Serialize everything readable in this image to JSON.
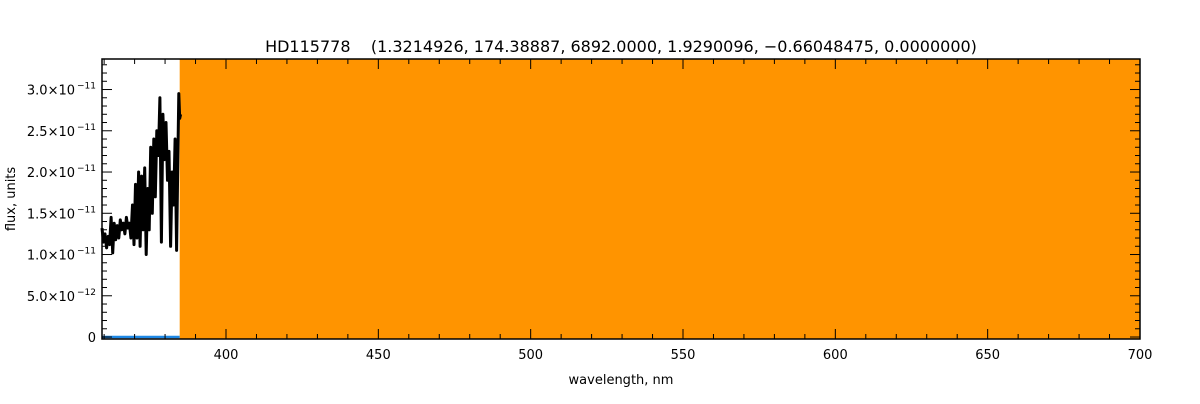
{
  "chart_data": {
    "type": "line",
    "title": "HD115778    (1.3214926, 174.38887, 6892.0000, 1.9290096, −0.66048475, 0.0000000)",
    "xlabel": "wavelength, nm",
    "ylabel": "flux, units",
    "xlim": [
      359.3,
      700
    ],
    "ylim": [
      -2.4e-13,
      3.37e-11
    ],
    "grid": false,
    "x_ticks": [
      400,
      450,
      500,
      550,
      600,
      650,
      700
    ],
    "x_tick_labels": [
      "400",
      "450",
      "500",
      "550",
      "600",
      "650",
      "700"
    ],
    "y_ticks": [
      0,
      5e-12,
      1e-11,
      1.5e-11,
      2e-11,
      2.5e-11,
      3e-11
    ],
    "y_tick_labels": [
      {
        "mant": "0",
        "exp": ""
      },
      {
        "mant": "5.0×10",
        "exp": "−12"
      },
      {
        "mant": "1.0×10",
        "exp": "−11"
      },
      {
        "mant": "1.5×10",
        "exp": "−11"
      },
      {
        "mant": "2.0×10",
        "exp": "−11"
      },
      {
        "mant": "2.5×10",
        "exp": "−11"
      },
      {
        "mant": "3.0×10",
        "exp": "−11"
      }
    ],
    "shaded_region": {
      "x": [
        384.8,
        700
      ],
      "color": "#ff9400"
    },
    "series": [
      {
        "color": "#000000",
        "x": [
          359.3,
          359.8,
          360.3,
          360.8,
          361.3,
          361.8,
          362.3,
          362.8,
          363.3,
          363.8,
          364.3,
          364.8,
          365.3,
          365.8,
          366.3,
          366.8,
          367.3,
          367.8,
          368.3,
          368.8,
          369.3,
          369.8,
          370.3,
          370.8,
          371.3,
          371.8,
          372.3,
          372.8,
          373.3,
          373.8,
          374.3,
          374.8,
          375.3,
          375.8,
          376.3,
          376.8,
          377.3,
          377.8,
          378.3,
          378.8,
          379.3,
          379.8,
          380.3,
          380.8,
          381.3,
          381.8,
          382.3,
          382.8,
          383.3,
          383.8,
          384.2,
          384.5,
          384.8,
          385.1
        ],
        "y": [
          1.32e-11,
          1.15e-11,
          1.25e-11,
          1.08e-11,
          1.22e-11,
          1.12e-11,
          1.45e-11,
          1.02e-11,
          1.38e-11,
          1.18e-11,
          1.35e-11,
          1.2e-11,
          1.42e-11,
          1.3e-11,
          1.38e-11,
          1.25e-11,
          1.45e-11,
          1.32e-11,
          1.38e-11,
          1.2e-11,
          1.6e-11,
          1.12e-11,
          1.85e-11,
          1.2e-11,
          2e-11,
          1.1e-11,
          1.95e-11,
          1.3e-11,
          2.05e-11,
          1e-11,
          1.8e-11,
          1.3e-11,
          2.3e-11,
          1.5e-11,
          2.4e-11,
          1.7e-11,
          2.5e-11,
          2.2e-11,
          2.9e-11,
          1.15e-11,
          2.7e-11,
          2.15e-11,
          2.6e-11,
          1.9e-11,
          2.25e-11,
          1.1e-11,
          2e-11,
          1.6e-11,
          2.4e-11,
          1.05e-11,
          2.2e-11,
          2.95e-11,
          2.65e-11,
          2.7e-11
        ]
      },
      {
        "color": "#1e88e5",
        "x": [
          359.3,
          384.8
        ],
        "y": [
          0,
          0
        ]
      }
    ]
  }
}
